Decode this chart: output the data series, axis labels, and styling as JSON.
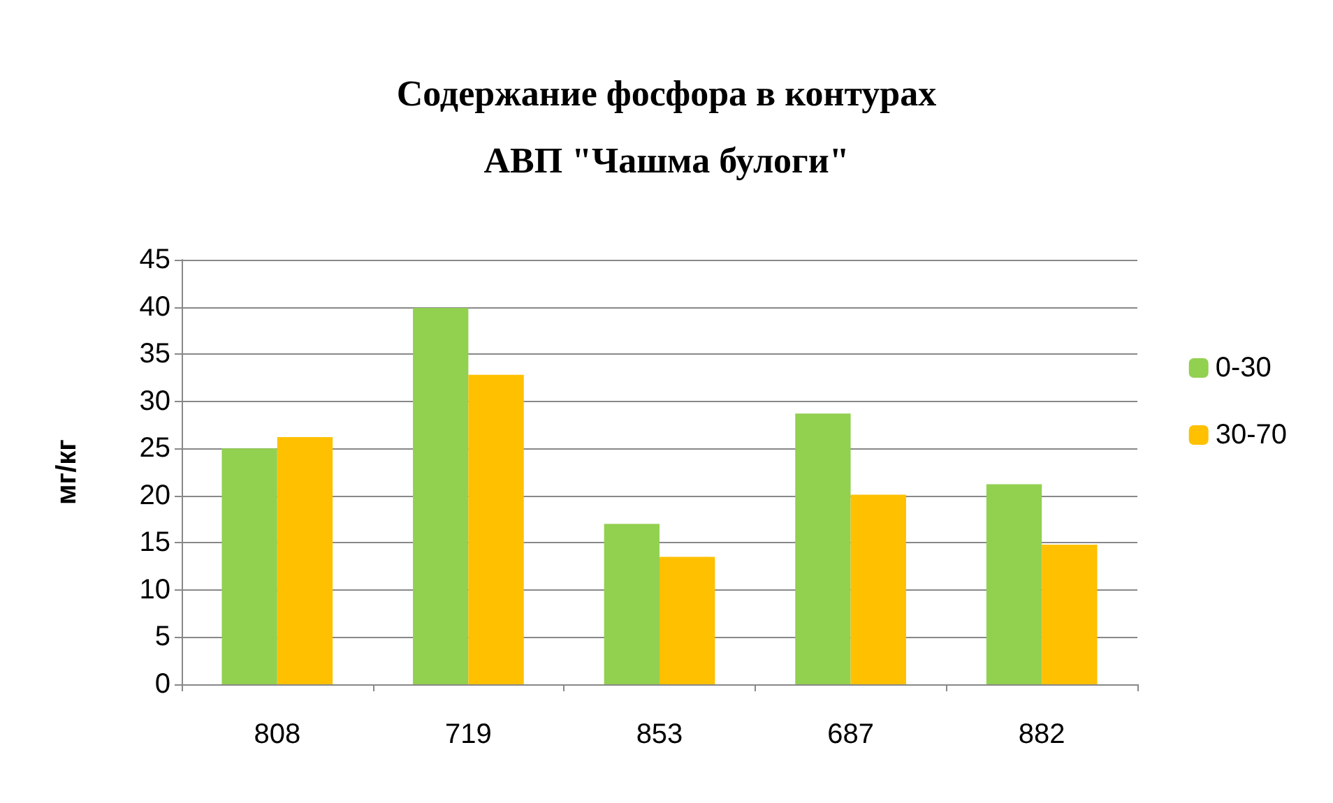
{
  "chart_data": {
    "type": "bar",
    "title": "Содержание фосфора в контурах\nАВП \"Чашма булоги\"",
    "ylabel": "мг/кг",
    "categories": [
      "808",
      "719",
      "853",
      "687",
      "882"
    ],
    "series": [
      {
        "name": "0-30",
        "color": "#92d050",
        "values": [
          25.0,
          39.9,
          17.0,
          28.7,
          21.2
        ]
      },
      {
        "name": "30-70",
        "color": "#ffc000",
        "values": [
          26.2,
          32.8,
          13.5,
          20.1,
          14.8
        ]
      }
    ],
    "ylim": [
      0,
      45
    ],
    "yticks": [
      0,
      5,
      10,
      15,
      20,
      25,
      30,
      35,
      40,
      45
    ],
    "grid": "y",
    "legend": "right"
  }
}
